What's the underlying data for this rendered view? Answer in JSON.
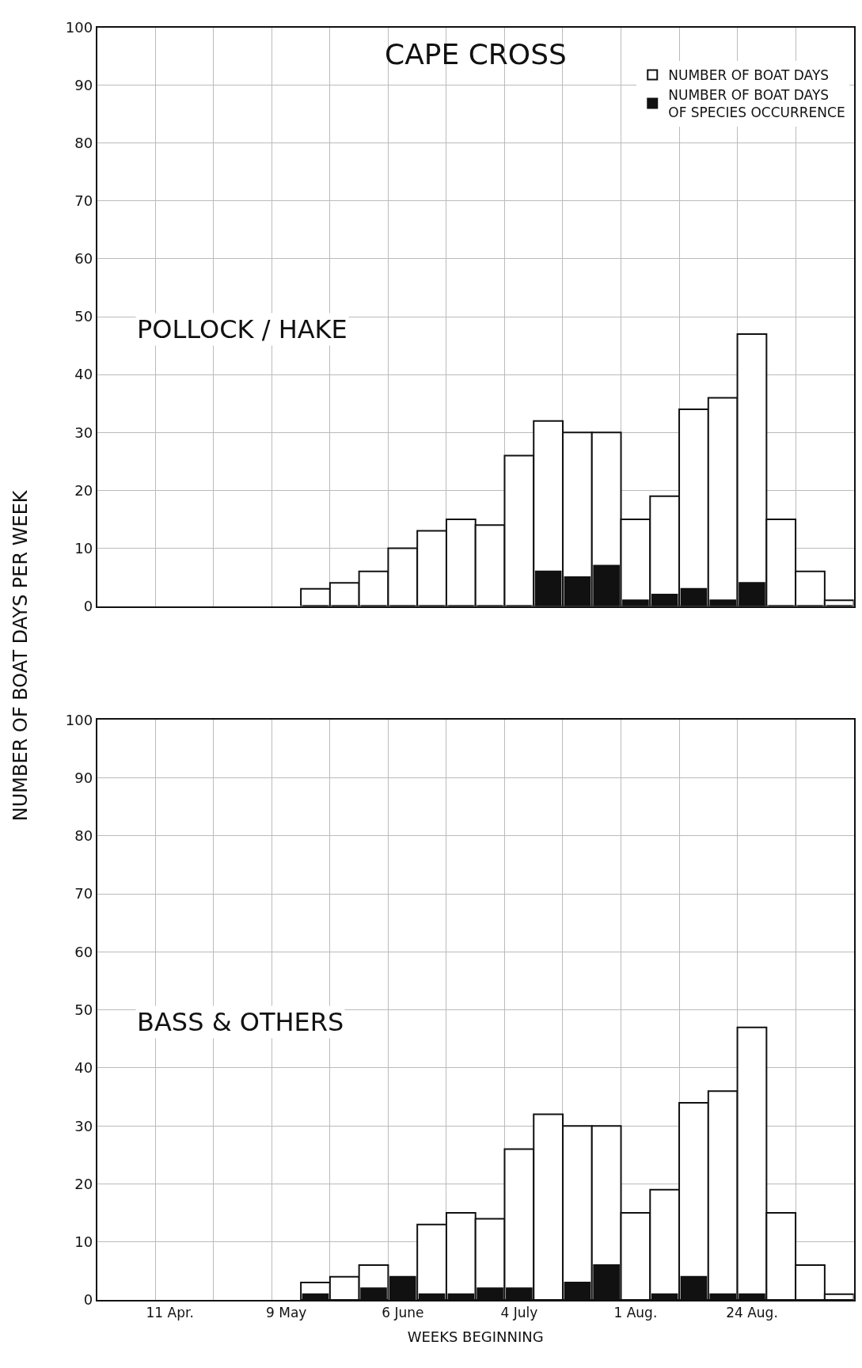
{
  "chart_data": [
    {
      "type": "bar",
      "title": "CAPE CROSS",
      "ylabel": "NUMBER OF BOAT DAYS PER WEEK",
      "annotations": [
        "POLLOCK / HAKE"
      ],
      "categories": [
        null,
        null,
        null,
        null,
        null,
        null,
        null,
        null,
        null,
        null,
        null,
        null,
        null,
        null,
        null,
        null,
        null,
        null,
        null,
        null,
        null,
        null,
        null,
        null,
        null,
        null
      ],
      "series": [
        {
          "name": "NUMBER OF BOAT DAYS",
          "color": "#ffffff",
          "values": [
            null,
            null,
            null,
            null,
            null,
            null,
            null,
            3,
            4,
            6,
            10,
            13,
            15,
            14,
            26,
            32,
            30,
            30,
            15,
            19,
            34,
            36,
            47,
            15,
            6,
            1
          ]
        },
        {
          "name": "NUMBER OF BOAT DAYS\nOF SPECIES OCCURRENCE",
          "color": "#111111",
          "values": [
            null,
            null,
            null,
            null,
            null,
            null,
            null,
            0,
            0,
            0,
            0,
            0,
            0,
            0,
            0,
            6,
            5,
            7,
            1,
            2,
            3,
            1,
            4,
            0,
            0,
            0
          ]
        }
      ],
      "ylim": [
        0,
        100
      ],
      "yticks": [
        0,
        10,
        20,
        30,
        40,
        50,
        60,
        70,
        80,
        90,
        100
      ],
      "grid": true,
      "legend": "top right"
    },
    {
      "type": "bar",
      "xlabel": "WEEKS BEGINNING",
      "annotations": [
        "BASS & OTHERS"
      ],
      "categories": [
        null,
        null,
        "11 Apr.",
        null,
        null,
        null,
        "9 May",
        null,
        null,
        null,
        "6 June",
        null,
        null,
        null,
        "4 July",
        null,
        null,
        null,
        "1 Aug.",
        null,
        null,
        null,
        "24 Aug.",
        null,
        null,
        null
      ],
      "series": [
        {
          "color": "#ffffff",
          "values": [
            null,
            null,
            null,
            null,
            null,
            null,
            null,
            3,
            4,
            6,
            null,
            13,
            15,
            14,
            26,
            32,
            30,
            30,
            15,
            19,
            34,
            36,
            47,
            15,
            6,
            1
          ]
        },
        {
          "color": "#111111",
          "values": [
            null,
            null,
            null,
            null,
            null,
            null,
            null,
            1,
            0,
            2,
            4,
            1,
            1,
            2,
            2,
            0,
            3,
            6,
            0,
            1,
            4,
            1,
            1,
            0,
            0,
            0
          ]
        }
      ],
      "ylim": [
        0,
        100
      ],
      "yticks": [
        0,
        10,
        20,
        30,
        40,
        50,
        60,
        70,
        80,
        90,
        100
      ],
      "grid": true
    }
  ]
}
